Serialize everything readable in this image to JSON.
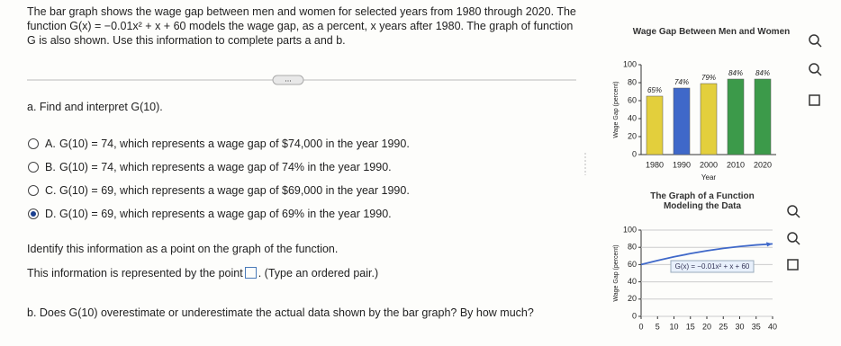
{
  "problem": {
    "intro": "The bar graph shows the wage gap between men and women for selected years from 1980 through 2020. The function G(x) = −0.01x² + x + 60 models the wage gap, as a percent, x years after 1980. The graph of function G is also shown. Use this information to complete parts a and b.",
    "part_a": "a. Find and interpret G(10).",
    "options": [
      {
        "letter": "A.",
        "text": "G(10) = 74, which represents a wage gap of $74,000 in the year 1990."
      },
      {
        "letter": "B.",
        "text": "G(10) = 74, which represents a wage gap of 74% in the year 1990."
      },
      {
        "letter": "C.",
        "text": "G(10) = 69, which represents a wage gap of $69,000 in the year 1990."
      },
      {
        "letter": "D.",
        "text": "G(10) = 69, which represents a wage gap of 69% in the year 1990."
      }
    ],
    "selected_option": 3,
    "identify": "Identify this information as a point on the graph of the function.",
    "point_prompt": "This information is represented by the point",
    "point_hint": ". (Type an ordered pair.)",
    "part_b": "b. Does G(10) overestimate or underestimate the actual data shown by the bar graph? By how much?",
    "more": "..."
  },
  "chart_data": [
    {
      "type": "bar",
      "title": "Wage Gap Between Men and Women",
      "x_label": "Year",
      "y_label": "Wage Gap (percent)",
      "categories": [
        "1980",
        "1990",
        "2000",
        "2010",
        "2020"
      ],
      "values": [
        65,
        74,
        79,
        84,
        84
      ],
      "value_labels": [
        "65%",
        "74%",
        "79%",
        "84%",
        "84%"
      ],
      "colors": [
        "#e3cf3c",
        "#3f68c9",
        "#e3cf3c",
        "#3c9a4a",
        "#3c9a4a"
      ],
      "ylim": [
        0,
        100
      ],
      "yticks": [
        0,
        20,
        40,
        60,
        80,
        100
      ],
      "grid": false
    },
    {
      "type": "line",
      "title": "The Graph of a Function Modeling the Data",
      "y_label": "Wage Gap (percent)",
      "annotation": "G(x) = −0.01x² + x + 60",
      "x": [
        0,
        5,
        10,
        15,
        20,
        25,
        30,
        35,
        40
      ],
      "values": [
        60,
        64.75,
        69,
        72.75,
        76,
        78.75,
        81,
        82.75,
        84
      ],
      "color": "#3f68c9",
      "xlim": [
        0,
        40
      ],
      "xticks": [
        0,
        5,
        10,
        15,
        20,
        25,
        30,
        35,
        40
      ],
      "ylim": [
        0,
        100
      ],
      "yticks": [
        0,
        20,
        40,
        60,
        80,
        100
      ],
      "grid": true
    }
  ]
}
